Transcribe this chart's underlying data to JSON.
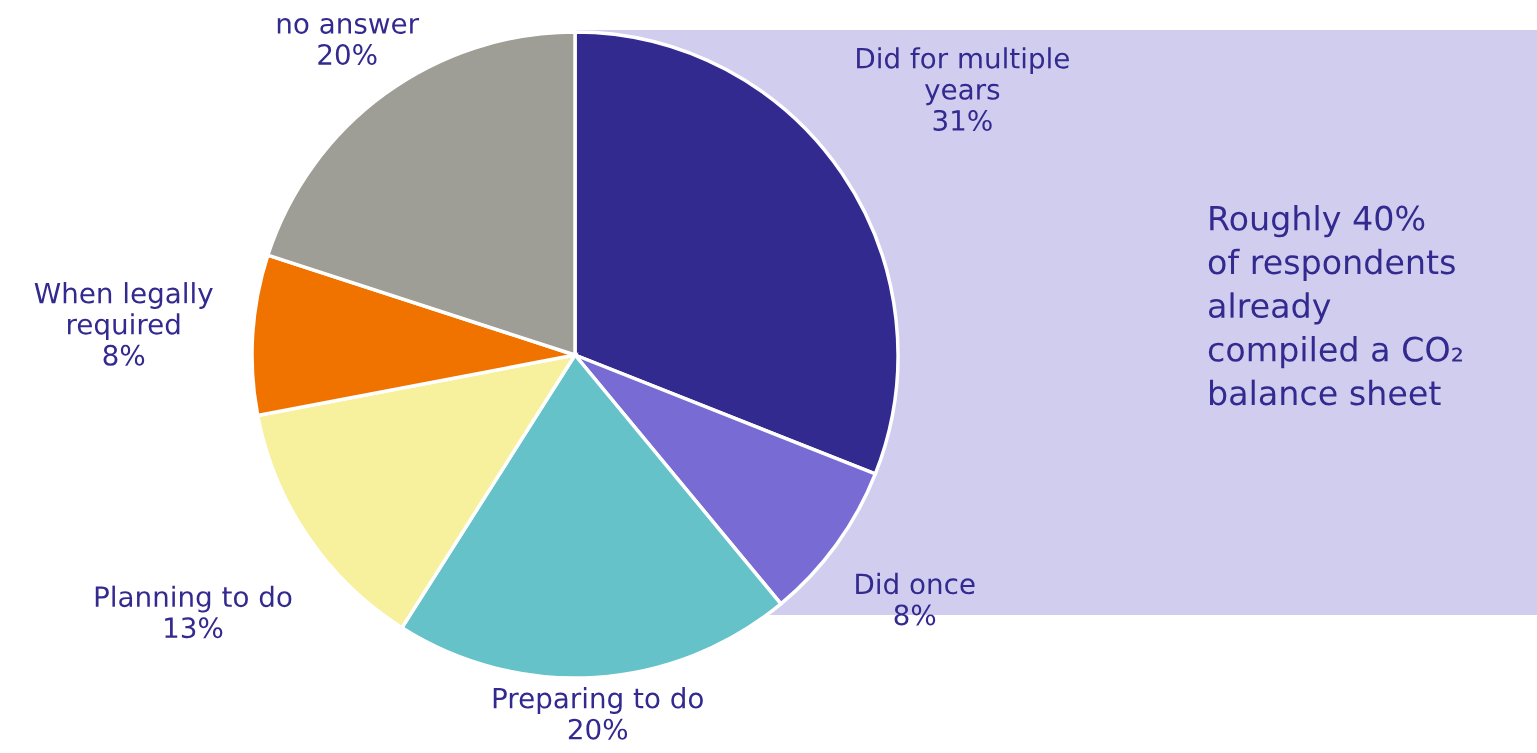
{
  "chart_data": {
    "type": "pie",
    "categories": [
      "Did for multiple\nyears",
      "Did once",
      "Preparing to do",
      "Planning to do",
      "When legally\nrequired",
      "no answer"
    ],
    "values": [
      31,
      8,
      20,
      13,
      8,
      20
    ],
    "value_labels": [
      "31%",
      "8%",
      "20%",
      "13%",
      "8%",
      "20%"
    ],
    "colors": [
      "#332a8f",
      "#786cd4",
      "#64c2c8",
      "#f7f09c",
      "#f07300",
      "#9e9e96"
    ],
    "annotations": [
      "Roughly 40%\nof respondents\nalready\ncompiled a CO₂\nbalance sheet"
    ]
  }
}
